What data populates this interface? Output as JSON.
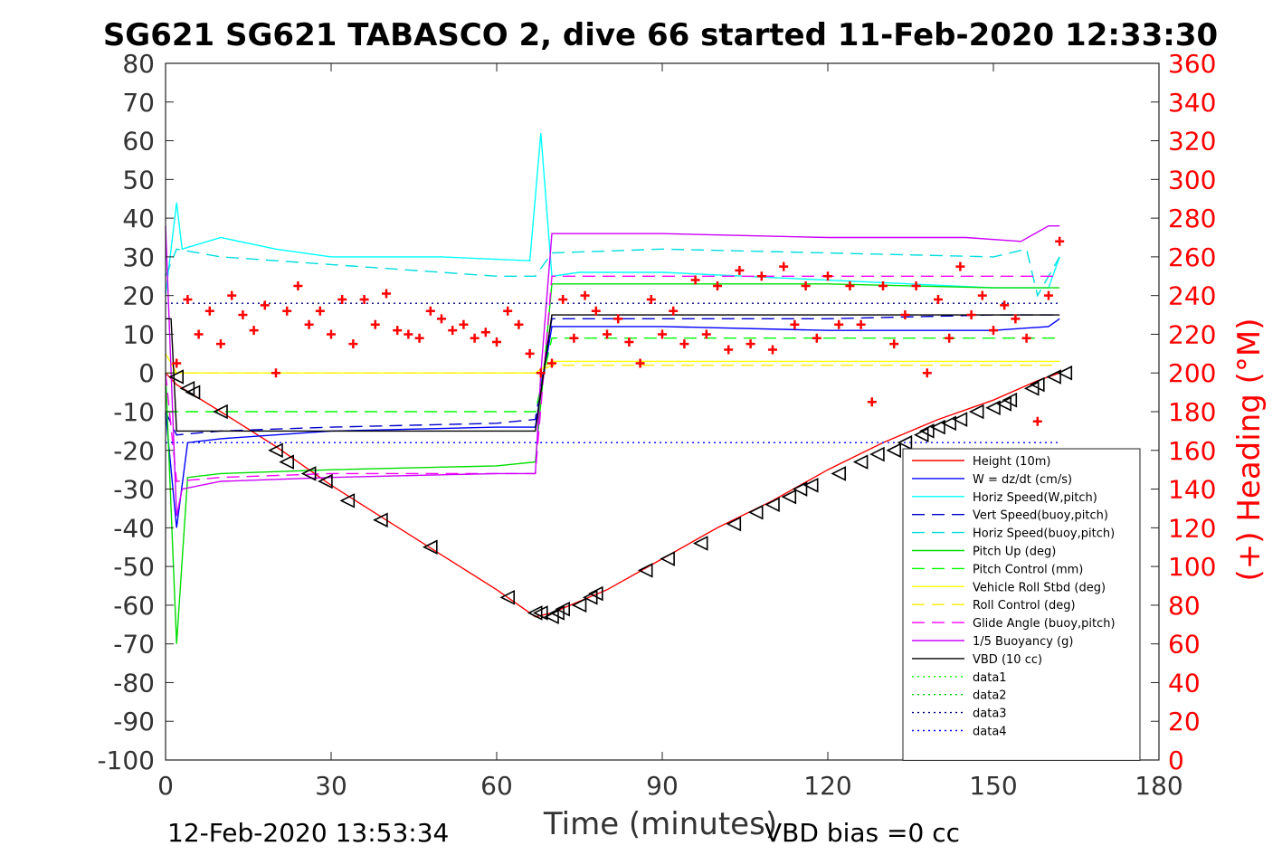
{
  "chart_data": {
    "type": "line",
    "title": "SG621 SG621 TABASCO 2, dive 66 started 11-Feb-2020 12:33:30",
    "xlabel": "Time (minutes)",
    "ylabel": "",
    "y2label": "(+) Heading (°M)",
    "xlim": [
      0,
      180
    ],
    "ylim": [
      -100,
      80
    ],
    "y2lim": [
      0,
      360
    ],
    "xticks": [
      "0",
      "30",
      "60",
      "90",
      "120",
      "150",
      "180"
    ],
    "yticks": [
      "80",
      "70",
      "60",
      "50",
      "40",
      "30",
      "20",
      "10",
      "0",
      "-10",
      "-20",
      "-30",
      "-40",
      "-50",
      "-60",
      "-70",
      "-80",
      "-90",
      "-100"
    ],
    "y2ticks": [
      "360",
      "340",
      "320",
      "300",
      "280",
      "260",
      "240",
      "220",
      "200",
      "180",
      "160",
      "140",
      "120",
      "100",
      "80",
      "60",
      "40",
      "20",
      "0"
    ],
    "grid": false,
    "legend_position": "bottom-right",
    "series": [
      {
        "name": "Height (10m)",
        "color": "#ff0000",
        "style": "solid",
        "x": [
          0,
          2,
          10,
          20,
          30,
          40,
          50,
          60,
          67,
          70,
          75,
          80,
          90,
          100,
          110,
          120,
          130,
          140,
          150,
          158,
          162
        ],
        "y": [
          0,
          -3,
          -10,
          -19,
          -29,
          -38,
          -47,
          -56,
          -63,
          -62,
          -59,
          -56,
          -48,
          -40,
          -33,
          -25,
          -18,
          -12,
          -7,
          -2,
          0
        ]
      },
      {
        "name": "W = dz/dt (cm/s)",
        "color": "#0000ff",
        "style": "solid",
        "x": [
          0,
          2,
          4,
          10,
          30,
          60,
          67,
          68,
          70,
          75,
          90,
          120,
          150,
          160,
          162
        ],
        "y": [
          -10,
          -40,
          -18,
          -17,
          -15,
          -14,
          -14,
          -5,
          12,
          12,
          12,
          11,
          11,
          12,
          14
        ]
      },
      {
        "name": "Horiz Speed(W,pitch)",
        "color": "#00ffff",
        "style": "solid",
        "x": [
          0,
          2,
          3,
          10,
          20,
          30,
          50,
          66,
          68,
          70,
          75,
          90,
          120,
          150,
          160,
          162
        ],
        "y": [
          20,
          44,
          32,
          35,
          32,
          30,
          30,
          29,
          62,
          25,
          26,
          26,
          24,
          22,
          22,
          30
        ]
      },
      {
        "name": "Vert Speed(buoy,pitch)",
        "color": "#0000cc",
        "style": "dashed",
        "x": [
          0,
          2,
          10,
          30,
          60,
          67,
          70,
          90,
          120,
          150,
          162
        ],
        "y": [
          -10,
          -16,
          -15,
          -14,
          -13,
          -12,
          14,
          14,
          14,
          15,
          15
        ]
      },
      {
        "name": "Horiz Speed(buoy,pitch)",
        "color": "#00dddd",
        "style": "dashed",
        "x": [
          0,
          2,
          10,
          30,
          60,
          67,
          70,
          90,
          120,
          150,
          156,
          158,
          162
        ],
        "y": [
          25,
          32,
          30,
          28,
          25,
          25,
          31,
          32,
          31,
          30,
          32,
          20,
          30
        ]
      },
      {
        "name": "Pitch Up (deg)",
        "color": "#00dd00",
        "style": "solid",
        "x": [
          0,
          2,
          4,
          10,
          30,
          60,
          67,
          70,
          90,
          120,
          150,
          162
        ],
        "y": [
          0,
          -70,
          -27,
          -26,
          -25,
          -24,
          -23,
          23,
          23,
          23,
          22,
          22
        ]
      },
      {
        "name": "Pitch Control (mm)",
        "color": "#00ff00",
        "style": "dashed",
        "x": [
          0,
          2,
          10,
          30,
          60,
          67,
          70,
          90,
          120,
          150,
          162
        ],
        "y": [
          -10,
          -10,
          -10,
          -10,
          -10,
          -10,
          9,
          9,
          9,
          9,
          9
        ]
      },
      {
        "name": "Vehicle Roll Stbd (deg)",
        "color": "#ffff00",
        "style": "solid",
        "x": [
          0,
          2,
          10,
          30,
          60,
          67,
          70,
          90,
          120,
          150,
          162
        ],
        "y": [
          5,
          0,
          0,
          0,
          0,
          0,
          3,
          3,
          3,
          3,
          3
        ]
      },
      {
        "name": "Roll Control (deg)",
        "color": "#ffee00",
        "style": "dashed",
        "x": [
          0,
          2,
          10,
          30,
          60,
          67,
          70,
          90,
          120,
          150,
          162
        ],
        "y": [
          0,
          0,
          0,
          0,
          0,
          0,
          2,
          2,
          2,
          2,
          2
        ]
      },
      {
        "name": "Glide Angle (buoy,pitch)",
        "color": "#ff00ff",
        "style": "dashed",
        "x": [
          0,
          2,
          10,
          30,
          60,
          67,
          70,
          90,
          120,
          150,
          162
        ],
        "y": [
          0,
          -28,
          -27,
          -26,
          -26,
          -26,
          25,
          25,
          25,
          25,
          25
        ]
      },
      {
        "name": "1/5 Buoyancy (g)",
        "color": "#cc00ff",
        "style": "solid",
        "x": [
          0,
          2,
          3,
          10,
          30,
          60,
          67,
          68,
          70,
          90,
          120,
          145,
          155,
          160,
          162
        ],
        "y": [
          38,
          -37,
          -30,
          -28,
          -27,
          -26,
          -26,
          0,
          36,
          36,
          35,
          35,
          34,
          38,
          38
        ]
      },
      {
        "name": "VBD (10 cc)",
        "color": "#000000",
        "style": "solid",
        "x": [
          0,
          1,
          2,
          67,
          70,
          162
        ],
        "y": [
          14,
          14,
          -15,
          -15,
          15,
          15
        ]
      },
      {
        "name": "data1",
        "color": "#00ff00",
        "style": "dotted",
        "x": [],
        "y": []
      },
      {
        "name": "data2",
        "color": "#00cc00",
        "style": "dotted",
        "x": [],
        "y": []
      },
      {
        "name": "data3",
        "color": "#000080",
        "style": "dotted",
        "x": [
          0,
          162
        ],
        "y": [
          18,
          18
        ]
      },
      {
        "name": "data4",
        "color": "#0000ff",
        "style": "dotted",
        "x": [
          0,
          162
        ],
        "y": [
          -18,
          -18
        ]
      }
    ],
    "heading_series": {
      "marker": "+",
      "color": "#ff0000",
      "axis": "right",
      "x": [
        2,
        4,
        6,
        8,
        10,
        12,
        14,
        16,
        18,
        20,
        22,
        24,
        26,
        28,
        30,
        32,
        34,
        36,
        38,
        40,
        42,
        44,
        46,
        48,
        50,
        52,
        54,
        56,
        58,
        60,
        62,
        64,
        66,
        68,
        70,
        72,
        74,
        76,
        78,
        80,
        82,
        84,
        86,
        88,
        90,
        92,
        94,
        96,
        98,
        100,
        102,
        104,
        106,
        108,
        110,
        112,
        114,
        116,
        118,
        120,
        122,
        124,
        126,
        128,
        130,
        132,
        134,
        136,
        138,
        140,
        142,
        144,
        146,
        148,
        150,
        152,
        154,
        156,
        158,
        160,
        162
      ],
      "y": [
        205,
        238,
        220,
        232,
        215,
        240,
        230,
        222,
        235,
        200,
        232,
        245,
        225,
        232,
        220,
        238,
        215,
        238,
        225,
        241,
        222,
        220,
        218,
        232,
        228,
        222,
        225,
        218,
        221,
        216,
        232,
        225,
        210,
        200,
        205,
        238,
        218,
        240,
        232,
        220,
        228,
        216,
        205,
        238,
        220,
        232,
        215,
        248,
        220,
        245,
        212,
        253,
        215,
        250,
        212,
        255,
        225,
        245,
        218,
        250,
        225,
        245,
        225,
        185,
        245,
        215,
        230,
        245,
        200,
        238,
        218,
        255,
        230,
        240,
        222,
        235,
        228,
        218,
        175,
        240,
        268
      ]
    },
    "dive_markers": {
      "x": [
        2,
        4,
        5,
        10,
        20,
        22,
        26,
        29,
        33,
        39,
        48,
        62,
        67,
        68,
        70,
        71,
        72,
        75,
        77,
        78,
        87,
        91,
        97,
        103,
        107,
        110,
        113,
        115,
        117,
        122,
        126,
        129,
        132,
        134,
        137,
        138,
        140,
        142,
        144,
        147,
        150,
        152,
        153,
        157,
        158,
        161,
        163
      ],
      "y": [
        -1,
        -4,
        -5,
        -10,
        -20,
        -23,
        -26,
        -28,
        -33,
        -38,
        -45,
        -58,
        -62,
        -62,
        -63,
        -62,
        -61,
        -60,
        -58,
        -57,
        -51,
        -48,
        -44,
        -39,
        -36,
        -34,
        -32,
        -30,
        -29,
        -26,
        -23,
        -21,
        -20,
        -18,
        -16,
        -15,
        -14,
        -13,
        -12,
        -10,
        -9,
        -8,
        -7,
        -4,
        -3,
        -1,
        0
      ]
    }
  },
  "footer": {
    "timestamp": "12-Feb-2020 13:53:34",
    "vbd_bias": "VBD bias =0 cc"
  }
}
